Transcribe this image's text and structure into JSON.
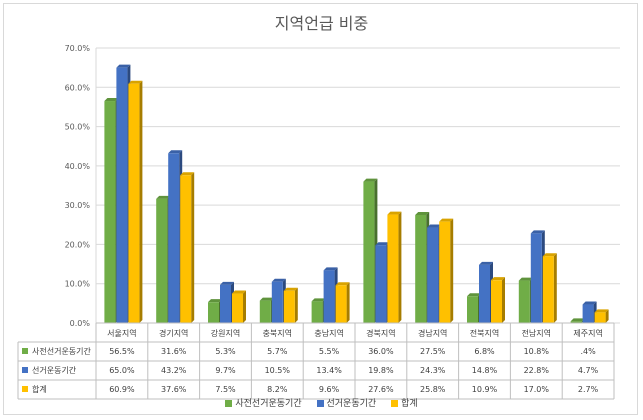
{
  "chart_data": {
    "type": "bar",
    "title": "지역언급 비중",
    "categories": [
      "서울지역",
      "경기지역",
      "강원지역",
      "충북지역",
      "충남지역",
      "경북지역",
      "경남지역",
      "전북지역",
      "전남지역",
      "제주지역"
    ],
    "ylim": [
      0,
      70
    ],
    "yticks": [
      "0.0%",
      "10.0%",
      "20.0%",
      "30.0%",
      "40.0%",
      "50.0%",
      "60.0%",
      "70.0%"
    ],
    "grid": true,
    "legend_position": "bottom",
    "series": [
      {
        "name": "사전선거운동기간",
        "color": "#70ad47",
        "values": [
          56.5,
          31.6,
          5.3,
          5.7,
          5.5,
          36.0,
          27.5,
          6.8,
          10.8,
          0.4
        ],
        "labels": [
          "56.5%",
          "31.6%",
          "5.3%",
          "5.7%",
          "5.5%",
          "36.0%",
          "27.5%",
          "6.8%",
          "10.8%",
          ".4%"
        ]
      },
      {
        "name": "선거운동기간",
        "color": "#4472c4",
        "values": [
          65.0,
          43.2,
          9.7,
          10.5,
          13.4,
          19.8,
          24.3,
          14.8,
          22.8,
          4.7
        ],
        "labels": [
          "65.0%",
          "43.2%",
          "9.7%",
          "10.5%",
          "13.4%",
          "19.8%",
          "24.3%",
          "14.8%",
          "22.8%",
          "4.7%"
        ]
      },
      {
        "name": "합계",
        "color": "#ffc000",
        "values": [
          60.9,
          37.6,
          7.5,
          8.2,
          9.6,
          27.6,
          25.8,
          10.9,
          17.0,
          2.7
        ],
        "labels": [
          "60.9%",
          "37.6%",
          "7.5%",
          "8.2%",
          "9.6%",
          "27.6%",
          "25.8%",
          "10.9%",
          "17.0%",
          "2.7%"
        ]
      }
    ]
  }
}
